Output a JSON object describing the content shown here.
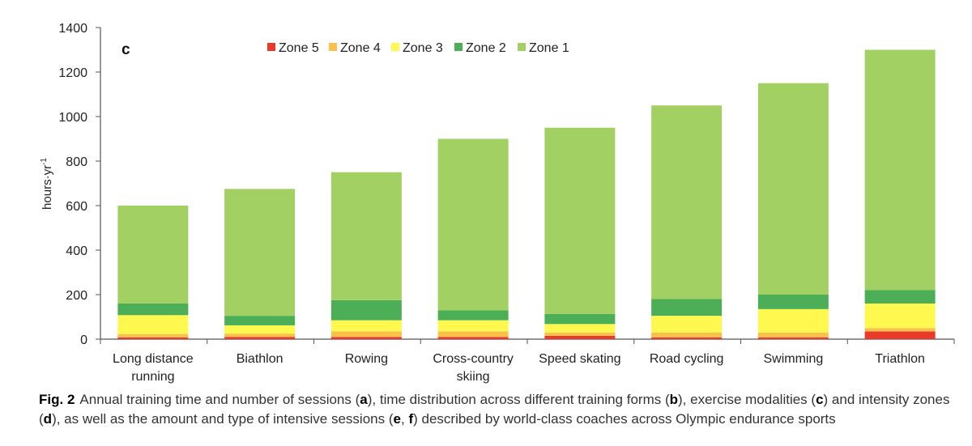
{
  "chart_data": {
    "type": "bar",
    "stacked": true,
    "panel_label": "c",
    "ylabel": "hours·yr",
    "ylabel_superscript": "-1",
    "ylim": [
      0,
      1400
    ],
    "yticks": [
      0,
      200,
      400,
      600,
      800,
      1000,
      1200,
      1400
    ],
    "grid": false,
    "legend_position": "top",
    "categories": [
      [
        "Long distance",
        "running"
      ],
      [
        "Biathlon"
      ],
      [
        "Rowing"
      ],
      [
        "Cross-country",
        "skiing"
      ],
      [
        "Speed skating"
      ],
      [
        "Road cycling"
      ],
      [
        "Swimming"
      ],
      [
        "Triathlon"
      ]
    ],
    "series": [
      {
        "name": "Zone 5",
        "color": "#e8392a",
        "values": [
          8,
          10,
          10,
          10,
          15,
          8,
          8,
          35
        ]
      },
      {
        "name": "Zone 4",
        "color": "#f9c04a",
        "values": [
          15,
          15,
          25,
          25,
          15,
          22,
          22,
          15
        ]
      },
      {
        "name": "Zone 3",
        "color": "#fff84f",
        "values": [
          85,
          37,
          50,
          50,
          38,
          75,
          105,
          110
        ]
      },
      {
        "name": "Zone 2",
        "color": "#4caf58",
        "values": [
          52,
          43,
          90,
          45,
          45,
          75,
          65,
          60
        ]
      },
      {
        "name": "Zone 1",
        "color": "#a2d063",
        "values": [
          440,
          570,
          575,
          770,
          837,
          870,
          950,
          1080
        ]
      }
    ],
    "legend_order": [
      "Zone 5",
      "Zone 4",
      "Zone 3",
      "Zone 2",
      "Zone 1"
    ]
  },
  "caption": {
    "label": "Fig. 2",
    "parts": [
      {
        "t": "Annual training time and number of sessions ("
      },
      {
        "t": "a",
        "b": true
      },
      {
        "t": "), time distribution across different training forms ("
      },
      {
        "t": "b",
        "b": true
      },
      {
        "t": "), exercise modalities ("
      },
      {
        "t": "c",
        "b": true
      },
      {
        "t": ") and intensity zones ("
      },
      {
        "t": "d",
        "b": true
      },
      {
        "t": "), as well as the amount and type of intensive sessions ("
      },
      {
        "t": "e",
        "b": true
      },
      {
        "t": ", "
      },
      {
        "t": "f",
        "b": true
      },
      {
        "t": ") described by world-class coaches across Olympic endurance sports"
      }
    ]
  }
}
